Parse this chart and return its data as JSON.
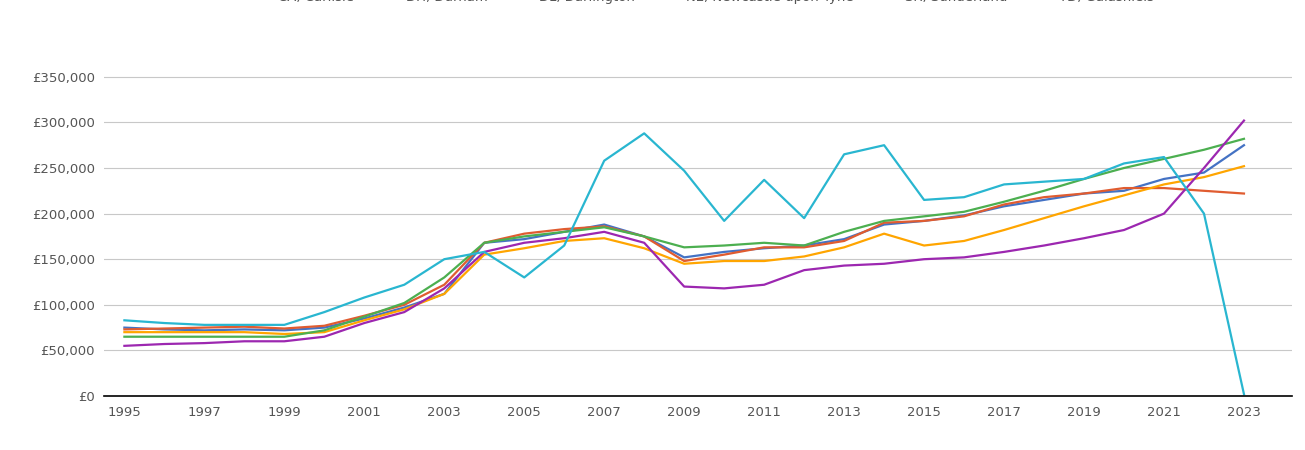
{
  "series": {
    "CA, Carlisle": {
      "color": "#4472c4",
      "data": {
        "1995": 75000,
        "1996": 73000,
        "1997": 72000,
        "1998": 73000,
        "1999": 72000,
        "2000": 75000,
        "2001": 85000,
        "2002": 97000,
        "2003": 112000,
        "2004": 168000,
        "2005": 172000,
        "2006": 180000,
        "2007": 188000,
        "2008": 175000,
        "2009": 152000,
        "2010": 158000,
        "2011": 162000,
        "2012": 165000,
        "2013": 172000,
        "2014": 188000,
        "2015": 192000,
        "2016": 198000,
        "2017": 208000,
        "2018": 215000,
        "2019": 222000,
        "2020": 225000,
        "2021": 238000,
        "2022": 245000,
        "2023": 275000
      }
    },
    "DH, Durham": {
      "color": "#e05c30",
      "data": {
        "1995": 73000,
        "1996": 74000,
        "1997": 75000,
        "1998": 76000,
        "1999": 74000,
        "2000": 77000,
        "2001": 88000,
        "2002": 100000,
        "2003": 122000,
        "2004": 168000,
        "2005": 178000,
        "2006": 183000,
        "2007": 186000,
        "2008": 175000,
        "2009": 148000,
        "2010": 155000,
        "2011": 163000,
        "2012": 163000,
        "2013": 170000,
        "2014": 190000,
        "2015": 192000,
        "2016": 197000,
        "2017": 210000,
        "2018": 218000,
        "2019": 222000,
        "2020": 228000,
        "2021": 228000,
        "2022": 225000,
        "2023": 222000
      }
    },
    "DL, Darlington": {
      "color": "#ffa500",
      "data": {
        "1995": 70000,
        "1996": 70000,
        "1997": 70000,
        "1998": 70000,
        "1999": 68000,
        "2000": 70000,
        "2001": 83000,
        "2002": 95000,
        "2003": 112000,
        "2004": 155000,
        "2005": 162000,
        "2006": 170000,
        "2007": 173000,
        "2008": 162000,
        "2009": 145000,
        "2010": 148000,
        "2011": 148000,
        "2012": 153000,
        "2013": 163000,
        "2014": 178000,
        "2015": 165000,
        "2016": 170000,
        "2017": 182000,
        "2018": 195000,
        "2019": 208000,
        "2020": 220000,
        "2021": 232000,
        "2022": 240000,
        "2023": 252000
      }
    },
    "NE, Newcastle upon Tyne": {
      "color": "#4caf50",
      "data": {
        "1995": 65000,
        "1996": 65000,
        "1997": 65000,
        "1998": 65000,
        "1999": 65000,
        "2000": 72000,
        "2001": 87000,
        "2002": 102000,
        "2003": 130000,
        "2004": 168000,
        "2005": 175000,
        "2006": 180000,
        "2007": 185000,
        "2008": 175000,
        "2009": 163000,
        "2010": 165000,
        "2011": 168000,
        "2012": 165000,
        "2013": 180000,
        "2014": 192000,
        "2015": 197000,
        "2016": 202000,
        "2017": 213000,
        "2018": 225000,
        "2019": 238000,
        "2020": 250000,
        "2021": 260000,
        "2022": 270000,
        "2023": 282000
      }
    },
    "SR, Sunderland": {
      "color": "#9c27b0",
      "data": {
        "1995": 55000,
        "1996": 57000,
        "1997": 58000,
        "1998": 60000,
        "1999": 60000,
        "2000": 65000,
        "2001": 80000,
        "2002": 92000,
        "2003": 118000,
        "2004": 158000,
        "2005": 168000,
        "2006": 173000,
        "2007": 180000,
        "2008": 168000,
        "2009": 120000,
        "2010": 118000,
        "2011": 122000,
        "2012": 138000,
        "2013": 143000,
        "2014": 145000,
        "2015": 150000,
        "2016": 152000,
        "2017": 158000,
        "2018": 165000,
        "2019": 173000,
        "2020": 182000,
        "2021": 200000,
        "2022": 250000,
        "2023": 302000
      }
    },
    "TD, Galashiels": {
      "color": "#29b6d0",
      "data": {
        "1995": 83000,
        "1996": 80000,
        "1997": 78000,
        "1998": 78000,
        "1999": 78000,
        "2000": 92000,
        "2001": 108000,
        "2002": 122000,
        "2003": 150000,
        "2004": 158000,
        "2005": 130000,
        "2006": 165000,
        "2007": 258000,
        "2008": 288000,
        "2009": 247000,
        "2010": 192000,
        "2011": 237000,
        "2012": 195000,
        "2013": 265000,
        "2014": 275000,
        "2015": 215000,
        "2016": 218000,
        "2017": 232000,
        "2018": 235000,
        "2019": 238000,
        "2020": 255000,
        "2021": 262000,
        "2022": 200000,
        "2023": 2000
      }
    }
  },
  "ylim": [
    0,
    375000
  ],
  "yticks": [
    0,
    50000,
    100000,
    150000,
    200000,
    250000,
    300000,
    350000
  ],
  "xticks": [
    1995,
    1997,
    1999,
    2001,
    2003,
    2005,
    2007,
    2009,
    2011,
    2013,
    2015,
    2017,
    2019,
    2021,
    2023
  ],
  "xlim_left": 1994.5,
  "xlim_right": 2024.2,
  "grid_color": "#c8c8c8",
  "background_color": "#ffffff",
  "tick_color": "#555555",
  "legend_fontsize": 9.5,
  "tick_fontsize": 9.5,
  "linewidth": 1.6
}
